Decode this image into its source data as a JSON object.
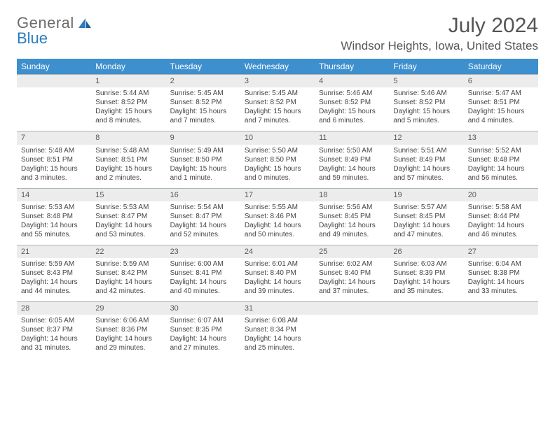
{
  "brand": {
    "part1": "General",
    "part2": "Blue"
  },
  "title": "July 2024",
  "location": "Windsor Heights, Iowa, United States",
  "colors": {
    "header_bg": "#3d8fce",
    "header_fg": "#ffffff",
    "daynum_bg": "#ececec",
    "border": "#aab4bd",
    "brand_gray": "#6b6b6b",
    "brand_blue": "#2b7bbf",
    "text": "#444444"
  },
  "weekdays": [
    "Sunday",
    "Monday",
    "Tuesday",
    "Wednesday",
    "Thursday",
    "Friday",
    "Saturday"
  ],
  "weeks": [
    [
      {},
      {
        "n": "1",
        "sunrise": "5:44 AM",
        "sunset": "8:52 PM",
        "dl1": "Daylight: 15 hours",
        "dl2": "and 8 minutes."
      },
      {
        "n": "2",
        "sunrise": "5:45 AM",
        "sunset": "8:52 PM",
        "dl1": "Daylight: 15 hours",
        "dl2": "and 7 minutes."
      },
      {
        "n": "3",
        "sunrise": "5:45 AM",
        "sunset": "8:52 PM",
        "dl1": "Daylight: 15 hours",
        "dl2": "and 7 minutes."
      },
      {
        "n": "4",
        "sunrise": "5:46 AM",
        "sunset": "8:52 PM",
        "dl1": "Daylight: 15 hours",
        "dl2": "and 6 minutes."
      },
      {
        "n": "5",
        "sunrise": "5:46 AM",
        "sunset": "8:52 PM",
        "dl1": "Daylight: 15 hours",
        "dl2": "and 5 minutes."
      },
      {
        "n": "6",
        "sunrise": "5:47 AM",
        "sunset": "8:51 PM",
        "dl1": "Daylight: 15 hours",
        "dl2": "and 4 minutes."
      }
    ],
    [
      {
        "n": "7",
        "sunrise": "5:48 AM",
        "sunset": "8:51 PM",
        "dl1": "Daylight: 15 hours",
        "dl2": "and 3 minutes."
      },
      {
        "n": "8",
        "sunrise": "5:48 AM",
        "sunset": "8:51 PM",
        "dl1": "Daylight: 15 hours",
        "dl2": "and 2 minutes."
      },
      {
        "n": "9",
        "sunrise": "5:49 AM",
        "sunset": "8:50 PM",
        "dl1": "Daylight: 15 hours",
        "dl2": "and 1 minute."
      },
      {
        "n": "10",
        "sunrise": "5:50 AM",
        "sunset": "8:50 PM",
        "dl1": "Daylight: 15 hours",
        "dl2": "and 0 minutes."
      },
      {
        "n": "11",
        "sunrise": "5:50 AM",
        "sunset": "8:49 PM",
        "dl1": "Daylight: 14 hours",
        "dl2": "and 59 minutes."
      },
      {
        "n": "12",
        "sunrise": "5:51 AM",
        "sunset": "8:49 PM",
        "dl1": "Daylight: 14 hours",
        "dl2": "and 57 minutes."
      },
      {
        "n": "13",
        "sunrise": "5:52 AM",
        "sunset": "8:48 PM",
        "dl1": "Daylight: 14 hours",
        "dl2": "and 56 minutes."
      }
    ],
    [
      {
        "n": "14",
        "sunrise": "5:53 AM",
        "sunset": "8:48 PM",
        "dl1": "Daylight: 14 hours",
        "dl2": "and 55 minutes."
      },
      {
        "n": "15",
        "sunrise": "5:53 AM",
        "sunset": "8:47 PM",
        "dl1": "Daylight: 14 hours",
        "dl2": "and 53 minutes."
      },
      {
        "n": "16",
        "sunrise": "5:54 AM",
        "sunset": "8:47 PM",
        "dl1": "Daylight: 14 hours",
        "dl2": "and 52 minutes."
      },
      {
        "n": "17",
        "sunrise": "5:55 AM",
        "sunset": "8:46 PM",
        "dl1": "Daylight: 14 hours",
        "dl2": "and 50 minutes."
      },
      {
        "n": "18",
        "sunrise": "5:56 AM",
        "sunset": "8:45 PM",
        "dl1": "Daylight: 14 hours",
        "dl2": "and 49 minutes."
      },
      {
        "n": "19",
        "sunrise": "5:57 AM",
        "sunset": "8:45 PM",
        "dl1": "Daylight: 14 hours",
        "dl2": "and 47 minutes."
      },
      {
        "n": "20",
        "sunrise": "5:58 AM",
        "sunset": "8:44 PM",
        "dl1": "Daylight: 14 hours",
        "dl2": "and 46 minutes."
      }
    ],
    [
      {
        "n": "21",
        "sunrise": "5:59 AM",
        "sunset": "8:43 PM",
        "dl1": "Daylight: 14 hours",
        "dl2": "and 44 minutes."
      },
      {
        "n": "22",
        "sunrise": "5:59 AM",
        "sunset": "8:42 PM",
        "dl1": "Daylight: 14 hours",
        "dl2": "and 42 minutes."
      },
      {
        "n": "23",
        "sunrise": "6:00 AM",
        "sunset": "8:41 PM",
        "dl1": "Daylight: 14 hours",
        "dl2": "and 40 minutes."
      },
      {
        "n": "24",
        "sunrise": "6:01 AM",
        "sunset": "8:40 PM",
        "dl1": "Daylight: 14 hours",
        "dl2": "and 39 minutes."
      },
      {
        "n": "25",
        "sunrise": "6:02 AM",
        "sunset": "8:40 PM",
        "dl1": "Daylight: 14 hours",
        "dl2": "and 37 minutes."
      },
      {
        "n": "26",
        "sunrise": "6:03 AM",
        "sunset": "8:39 PM",
        "dl1": "Daylight: 14 hours",
        "dl2": "and 35 minutes."
      },
      {
        "n": "27",
        "sunrise": "6:04 AM",
        "sunset": "8:38 PM",
        "dl1": "Daylight: 14 hours",
        "dl2": "and 33 minutes."
      }
    ],
    [
      {
        "n": "28",
        "sunrise": "6:05 AM",
        "sunset": "8:37 PM",
        "dl1": "Daylight: 14 hours",
        "dl2": "and 31 minutes."
      },
      {
        "n": "29",
        "sunrise": "6:06 AM",
        "sunset": "8:36 PM",
        "dl1": "Daylight: 14 hours",
        "dl2": "and 29 minutes."
      },
      {
        "n": "30",
        "sunrise": "6:07 AM",
        "sunset": "8:35 PM",
        "dl1": "Daylight: 14 hours",
        "dl2": "and 27 minutes."
      },
      {
        "n": "31",
        "sunrise": "6:08 AM",
        "sunset": "8:34 PM",
        "dl1": "Daylight: 14 hours",
        "dl2": "and 25 minutes."
      },
      {},
      {},
      {}
    ]
  ]
}
